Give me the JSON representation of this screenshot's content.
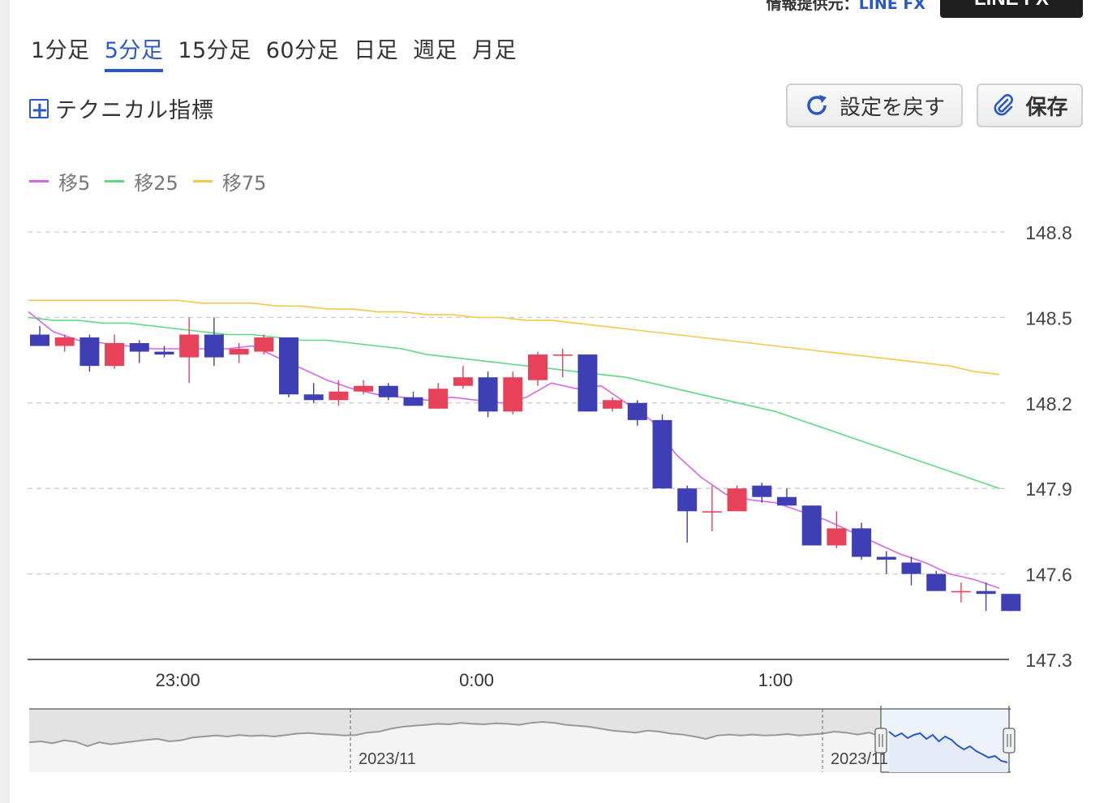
{
  "provider": {
    "prefix": "情報提供元：",
    "name": "LINE FX",
    "badge": "LINE FX"
  },
  "timeframes": [
    "1分足",
    "5分足",
    "15分足",
    "60分足",
    "日足",
    "週足",
    "月足"
  ],
  "active_timeframe": 1,
  "toolbar": {
    "indicator_label": "テクニカル指標",
    "reset_label": "設定を戻す",
    "save_label": "保存"
  },
  "colors": {
    "accent": "#2a58c9",
    "up": "#e8425a",
    "down": "#3f3fb5",
    "grid": "#cccccc"
  },
  "chart_data": {
    "type": "candlestick",
    "y_ticks": [
      "148.8",
      "148.5",
      "148.2",
      "147.9",
      "147.6",
      "147.3"
    ],
    "ylim": [
      147.3,
      148.8
    ],
    "x_tick_labels": [
      {
        "label": "23:00",
        "index": 6
      },
      {
        "label": "0:00",
        "index": 18
      },
      {
        "label": "1:00",
        "index": 30
      }
    ],
    "candles": [
      {
        "o": 148.44,
        "h": 148.47,
        "l": 148.4,
        "c": 148.4
      },
      {
        "o": 148.4,
        "h": 148.44,
        "l": 148.38,
        "c": 148.43
      },
      {
        "o": 148.43,
        "h": 148.44,
        "l": 148.31,
        "c": 148.33
      },
      {
        "o": 148.33,
        "h": 148.44,
        "l": 148.32,
        "c": 148.41
      },
      {
        "o": 148.41,
        "h": 148.42,
        "l": 148.34,
        "c": 148.38
      },
      {
        "o": 148.38,
        "h": 148.4,
        "l": 148.36,
        "c": 148.37
      },
      {
        "o": 148.36,
        "h": 148.5,
        "l": 148.27,
        "c": 148.44
      },
      {
        "o": 148.44,
        "h": 148.5,
        "l": 148.33,
        "c": 148.36
      },
      {
        "o": 148.37,
        "h": 148.41,
        "l": 148.34,
        "c": 148.39
      },
      {
        "o": 148.38,
        "h": 148.44,
        "l": 148.37,
        "c": 148.43
      },
      {
        "o": 148.43,
        "h": 148.43,
        "l": 148.22,
        "c": 148.23
      },
      {
        "o": 148.23,
        "h": 148.27,
        "l": 148.2,
        "c": 148.21
      },
      {
        "o": 148.21,
        "h": 148.28,
        "l": 148.19,
        "c": 148.24
      },
      {
        "o": 148.24,
        "h": 148.28,
        "l": 148.23,
        "c": 148.26
      },
      {
        "o": 148.26,
        "h": 148.27,
        "l": 148.21,
        "c": 148.22
      },
      {
        "o": 148.22,
        "h": 148.24,
        "l": 148.19,
        "c": 148.19
      },
      {
        "o": 148.18,
        "h": 148.27,
        "l": 148.18,
        "c": 148.25
      },
      {
        "o": 148.26,
        "h": 148.33,
        "l": 148.25,
        "c": 148.29
      },
      {
        "o": 148.29,
        "h": 148.31,
        "l": 148.15,
        "c": 148.17
      },
      {
        "o": 148.17,
        "h": 148.31,
        "l": 148.16,
        "c": 148.29
      },
      {
        "o": 148.28,
        "h": 148.38,
        "l": 148.26,
        "c": 148.37
      },
      {
        "o": 148.37,
        "h": 148.39,
        "l": 148.29,
        "c": 148.37
      },
      {
        "o": 148.37,
        "h": 148.37,
        "l": 148.17,
        "c": 148.17
      },
      {
        "o": 148.18,
        "h": 148.22,
        "l": 148.17,
        "c": 148.21
      },
      {
        "o": 148.2,
        "h": 148.21,
        "l": 148.12,
        "c": 148.14
      },
      {
        "o": 148.14,
        "h": 148.16,
        "l": 147.9,
        "c": 147.9
      },
      {
        "o": 147.9,
        "h": 147.91,
        "l": 147.71,
        "c": 147.82
      },
      {
        "o": 147.82,
        "h": 147.91,
        "l": 147.75,
        "c": 147.82
      },
      {
        "o": 147.82,
        "h": 147.91,
        "l": 147.82,
        "c": 147.9
      },
      {
        "o": 147.91,
        "h": 147.92,
        "l": 147.85,
        "c": 147.87
      },
      {
        "o": 147.87,
        "h": 147.9,
        "l": 147.84,
        "c": 147.84
      },
      {
        "o": 147.84,
        "h": 147.84,
        "l": 147.7,
        "c": 147.7
      },
      {
        "o": 147.7,
        "h": 147.82,
        "l": 147.69,
        "c": 147.76
      },
      {
        "o": 147.76,
        "h": 147.78,
        "l": 147.65,
        "c": 147.66
      },
      {
        "o": 147.66,
        "h": 147.68,
        "l": 147.6,
        "c": 147.65
      },
      {
        "o": 147.64,
        "h": 147.66,
        "l": 147.56,
        "c": 147.6
      },
      {
        "o": 147.6,
        "h": 147.61,
        "l": 147.54,
        "c": 147.54
      },
      {
        "o": 147.54,
        "h": 147.57,
        "l": 147.5,
        "c": 147.54
      },
      {
        "o": 147.54,
        "h": 147.57,
        "l": 147.47,
        "c": 147.53
      },
      {
        "o": 147.53,
        "h": 147.53,
        "l": 147.47,
        "c": 147.47
      }
    ],
    "series": [
      {
        "name": "移5",
        "color": "#d867e8",
        "values": [
          148.52,
          148.45,
          148.42,
          148.41,
          148.4,
          148.39,
          148.39,
          148.39,
          148.39,
          148.4,
          148.36,
          148.32,
          148.28,
          148.25,
          148.23,
          148.22,
          148.21,
          148.22,
          148.21,
          148.2,
          148.22,
          148.27,
          148.25,
          148.26,
          148.2,
          148.14,
          148.02,
          147.94,
          147.88,
          147.86,
          147.85,
          147.82,
          147.79,
          147.75,
          147.71,
          147.67,
          147.64,
          147.6,
          147.58,
          147.55
        ]
      },
      {
        "name": "移25",
        "color": "#5fd982",
        "values": [
          148.5,
          148.49,
          148.49,
          148.48,
          148.48,
          148.47,
          148.46,
          148.45,
          148.44,
          148.44,
          148.43,
          148.42,
          148.42,
          148.41,
          148.4,
          148.39,
          148.37,
          148.36,
          148.35,
          148.34,
          148.33,
          148.32,
          148.31,
          148.3,
          148.29,
          148.27,
          148.25,
          148.23,
          148.21,
          148.19,
          148.17,
          148.14,
          148.11,
          148.08,
          148.05,
          148.02,
          147.99,
          147.96,
          147.93,
          147.9
        ]
      },
      {
        "name": "移75",
        "color": "#f2c94c",
        "values": [
          148.56,
          148.56,
          148.56,
          148.56,
          148.56,
          148.56,
          148.56,
          148.55,
          148.55,
          148.55,
          148.54,
          148.54,
          148.53,
          148.53,
          148.52,
          148.52,
          148.51,
          148.51,
          148.5,
          148.5,
          148.49,
          148.49,
          148.48,
          148.47,
          148.46,
          148.45,
          148.44,
          148.43,
          148.42,
          148.41,
          148.4,
          148.39,
          148.38,
          148.37,
          148.36,
          148.35,
          148.34,
          148.33,
          148.31,
          148.3
        ]
      }
    ],
    "navigator": {
      "labels": [
        "2023/11",
        "2023/11"
      ],
      "history": [
        0.62,
        0.6,
        0.64,
        0.58,
        0.61,
        0.7,
        0.62,
        0.66,
        0.63,
        0.6,
        0.57,
        0.55,
        0.6,
        0.58,
        0.52,
        0.5,
        0.48,
        0.5,
        0.47,
        0.49,
        0.48,
        0.5,
        0.47,
        0.44,
        0.43,
        0.45,
        0.46,
        0.48,
        0.47,
        0.42,
        0.4,
        0.34,
        0.3,
        0.28,
        0.26,
        0.24,
        0.25,
        0.22,
        0.24,
        0.25,
        0.23,
        0.24,
        0.26,
        0.22,
        0.2,
        0.22,
        0.26,
        0.28,
        0.3,
        0.34,
        0.38,
        0.4,
        0.42,
        0.38,
        0.4,
        0.44,
        0.46,
        0.5,
        0.55,
        0.48,
        0.46,
        0.48,
        0.46,
        0.48,
        0.47,
        0.45,
        0.48,
        0.46,
        0.44,
        0.4,
        0.42,
        0.46,
        0.42,
        0.5
      ],
      "selection": [
        0.42,
        0.36,
        0.4,
        0.34,
        0.38,
        0.4,
        0.33,
        0.38,
        0.3,
        0.36,
        0.32,
        0.25,
        0.2,
        0.24,
        0.18,
        0.14,
        0.1,
        0.12,
        0.06,
        0.04
      ]
    }
  }
}
